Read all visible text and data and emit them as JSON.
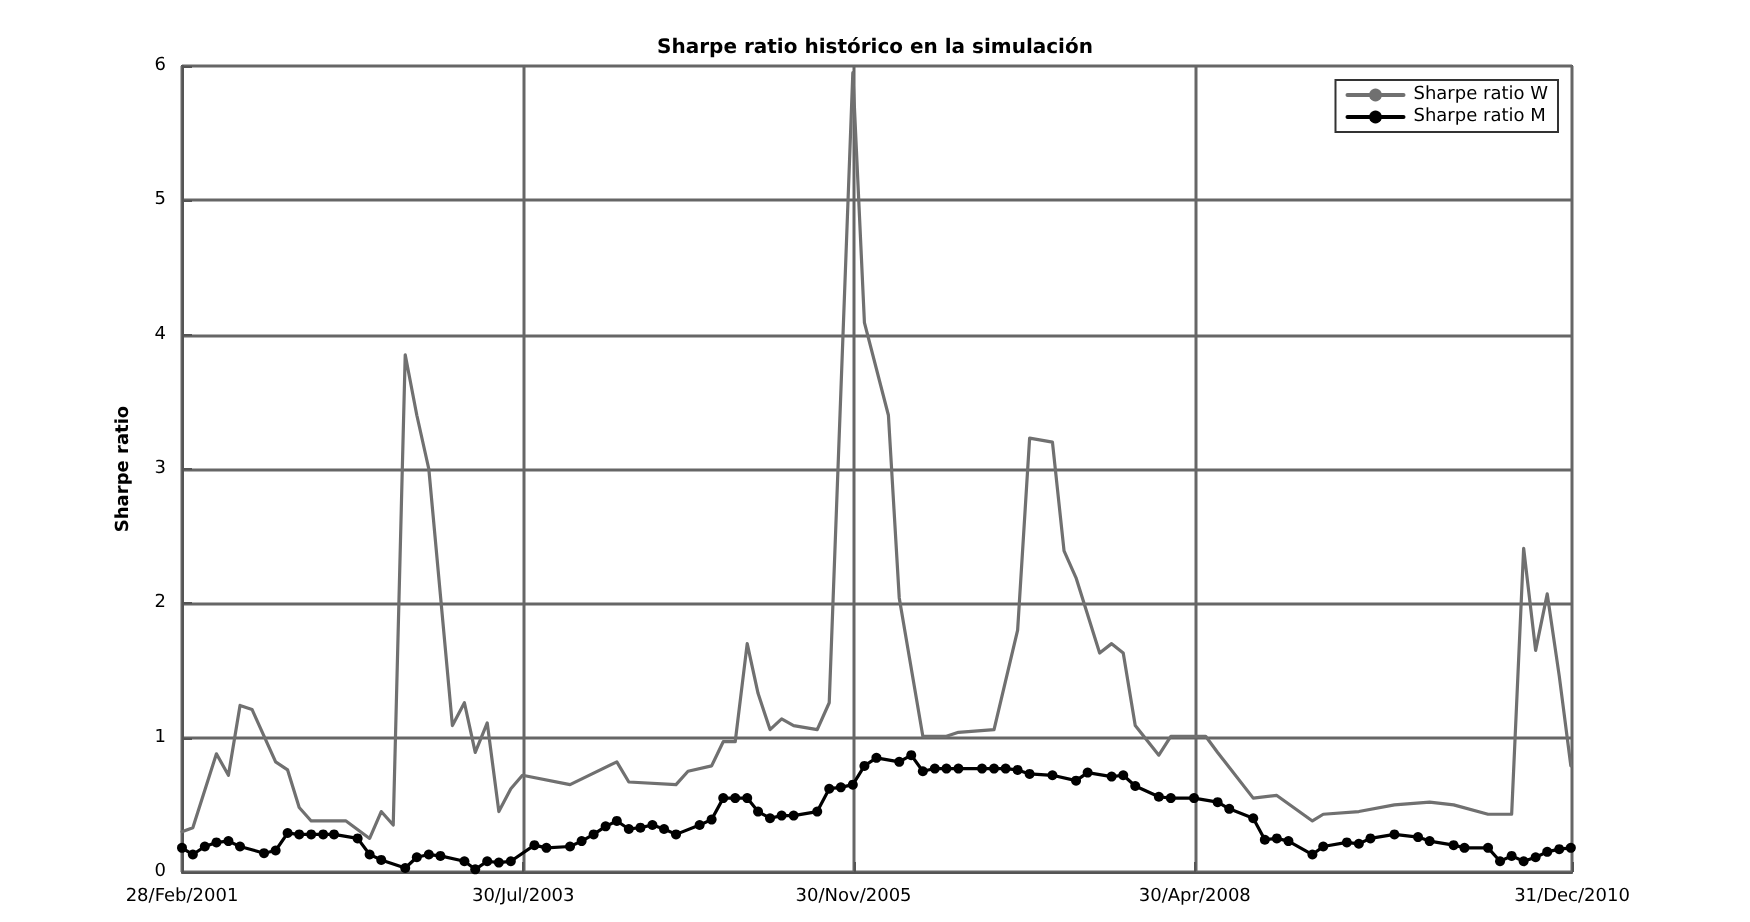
{
  "chart_data": {
    "type": "line",
    "title": "Sharpe ratio histórico en la simulación",
    "ylabel": "Sharpe ratio",
    "xlim": [
      "2001-02-28",
      "2010-12-31"
    ],
    "xticks": [
      {
        "value": "2001-02-28",
        "label": "28/Feb/2001"
      },
      {
        "value": "2003-07-30",
        "label": "30/Jul/2003"
      },
      {
        "value": "2005-11-30",
        "label": "30/Nov/2005"
      },
      {
        "value": "2008-04-30",
        "label": "30/Apr/2008"
      },
      {
        "value": "2010-12-31",
        "label": "31/Dec/2010"
      }
    ],
    "ylim": [
      0,
      6
    ],
    "yticks": [
      0,
      1,
      2,
      3,
      4,
      5,
      6
    ],
    "grid": true,
    "legend": "top right",
    "line_style": "solid",
    "series": [
      {
        "name": "Sharpe ratio W",
        "color": "#707070",
        "marker": "none",
        "x": [
          "2001-02-28",
          "2001-03-28",
          "2001-05-28",
          "2001-06-28",
          "2001-07-28",
          "2001-08-28",
          "2001-10-28",
          "2001-11-28",
          "2001-12-28",
          "2002-01-28",
          "2002-04-28",
          "2002-06-28",
          "2002-07-28",
          "2002-08-28",
          "2002-09-28",
          "2002-10-28",
          "2002-11-28",
          "2003-01-28",
          "2003-02-28",
          "2003-03-28",
          "2003-04-28",
          "2003-05-28",
          "2003-06-28",
          "2003-07-28",
          "2003-11-28",
          "2004-03-28",
          "2004-04-28",
          "2004-08-28",
          "2004-09-28",
          "2004-11-28",
          "2004-12-28",
          "2005-01-28",
          "2005-02-28",
          "2005-03-28",
          "2005-04-28",
          "2005-05-28",
          "2005-06-28",
          "2005-08-28",
          "2005-09-28",
          "2005-11-28",
          "2005-12-28",
          "2006-02-28",
          "2006-03-28",
          "2006-05-28",
          "2006-07-28",
          "2006-08-28",
          "2006-11-28",
          "2007-01-28",
          "2007-02-28",
          "2007-04-28",
          "2007-05-28",
          "2007-06-28",
          "2007-08-28",
          "2007-09-28",
          "2007-10-28",
          "2007-11-28",
          "2008-01-28",
          "2008-02-28",
          "2008-05-28",
          "2008-06-28",
          "2008-09-28",
          "2008-11-28",
          "2009-02-28",
          "2009-03-28",
          "2009-06-28",
          "2009-09-28",
          "2009-12-28",
          "2010-02-28",
          "2010-05-28",
          "2010-07-28",
          "2010-08-28",
          "2010-09-28",
          "2010-10-28",
          "2010-11-28",
          "2010-12-28"
        ],
        "values": [
          0.3,
          0.33,
          0.88,
          0.72,
          1.24,
          1.21,
          0.82,
          0.76,
          0.48,
          0.38,
          0.38,
          0.25,
          0.45,
          0.35,
          3.85,
          3.4,
          3.0,
          1.09,
          1.26,
          0.89,
          1.11,
          0.45,
          0.62,
          0.72,
          0.65,
          0.82,
          0.67,
          0.65,
          0.75,
          0.79,
          0.97,
          0.97,
          1.7,
          1.33,
          1.06,
          1.14,
          1.09,
          1.06,
          1.26,
          5.95,
          4.09,
          3.4,
          2.04,
          1.01,
          1.01,
          1.04,
          1.06,
          1.8,
          3.23,
          3.2,
          2.39,
          2.19,
          1.63,
          1.7,
          1.63,
          1.09,
          0.87,
          1.01,
          1.01,
          0.89,
          0.55,
          0.57,
          0.38,
          0.43,
          0.45,
          0.5,
          0.52,
          0.5,
          0.43,
          0.43,
          2.41,
          1.65,
          2.07,
          1.46,
          0.79
        ]
      },
      {
        "name": "Sharpe ratio M",
        "color": "#000000",
        "marker": "circle",
        "x": [
          "2001-02-28",
          "2001-03-28",
          "2001-04-28",
          "2001-05-28",
          "2001-06-28",
          "2001-07-28",
          "2001-09-28",
          "2001-10-28",
          "2001-11-28",
          "2001-12-28",
          "2002-01-28",
          "2002-02-28",
          "2002-03-28",
          "2002-05-28",
          "2002-06-28",
          "2002-07-28",
          "2002-09-28",
          "2002-10-28",
          "2002-11-28",
          "2002-12-28",
          "2003-02-28",
          "2003-03-28",
          "2003-04-28",
          "2003-05-28",
          "2003-06-28",
          "2003-08-28",
          "2003-09-28",
          "2003-11-28",
          "2003-12-28",
          "2004-01-28",
          "2004-02-28",
          "2004-03-28",
          "2004-04-28",
          "2004-05-28",
          "2004-06-28",
          "2004-07-28",
          "2004-08-28",
          "2004-10-28",
          "2004-11-28",
          "2004-12-28",
          "2005-01-28",
          "2005-02-28",
          "2005-03-28",
          "2005-04-28",
          "2005-05-28",
          "2005-06-28",
          "2005-08-28",
          "2005-09-28",
          "2005-10-28",
          "2005-11-28",
          "2005-12-28",
          "2006-01-28",
          "2006-03-28",
          "2006-04-28",
          "2006-05-28",
          "2006-06-28",
          "2006-07-28",
          "2006-08-28",
          "2006-10-28",
          "2006-11-28",
          "2006-12-28",
          "2007-01-28",
          "2007-02-28",
          "2007-04-28",
          "2007-06-28",
          "2007-07-28",
          "2007-09-28",
          "2007-10-28",
          "2007-11-28",
          "2008-01-28",
          "2008-02-28",
          "2008-04-28",
          "2008-06-28",
          "2008-07-28",
          "2008-09-28",
          "2008-10-28",
          "2008-11-28",
          "2008-12-28",
          "2009-02-28",
          "2009-03-28",
          "2009-05-28",
          "2009-06-28",
          "2009-07-28",
          "2009-09-28",
          "2009-11-28",
          "2009-12-28",
          "2010-02-28",
          "2010-03-28",
          "2010-05-28",
          "2010-06-28",
          "2010-07-28",
          "2010-08-28",
          "2010-09-28",
          "2010-10-28",
          "2010-11-28",
          "2010-12-28"
        ],
        "values": [
          0.18,
          0.13,
          0.19,
          0.22,
          0.23,
          0.19,
          0.14,
          0.16,
          0.29,
          0.28,
          0.28,
          0.28,
          0.28,
          0.25,
          0.13,
          0.09,
          0.03,
          0.11,
          0.13,
          0.12,
          0.08,
          0.02,
          0.08,
          0.07,
          0.08,
          0.2,
          0.18,
          0.19,
          0.23,
          0.28,
          0.34,
          0.38,
          0.32,
          0.33,
          0.35,
          0.32,
          0.28,
          0.35,
          0.39,
          0.55,
          0.55,
          0.55,
          0.45,
          0.4,
          0.42,
          0.42,
          0.45,
          0.62,
          0.63,
          0.65,
          0.79,
          0.85,
          0.82,
          0.87,
          0.75,
          0.77,
          0.77,
          0.77,
          0.77,
          0.77,
          0.77,
          0.76,
          0.73,
          0.72,
          0.68,
          0.74,
          0.71,
          0.72,
          0.64,
          0.56,
          0.55,
          0.55,
          0.52,
          0.47,
          0.4,
          0.24,
          0.25,
          0.23,
          0.13,
          0.19,
          0.22,
          0.21,
          0.25,
          0.28,
          0.26,
          0.23,
          0.2,
          0.18,
          0.18,
          0.08,
          0.12,
          0.08,
          0.11,
          0.15,
          0.17,
          0.18
        ]
      }
    ]
  }
}
